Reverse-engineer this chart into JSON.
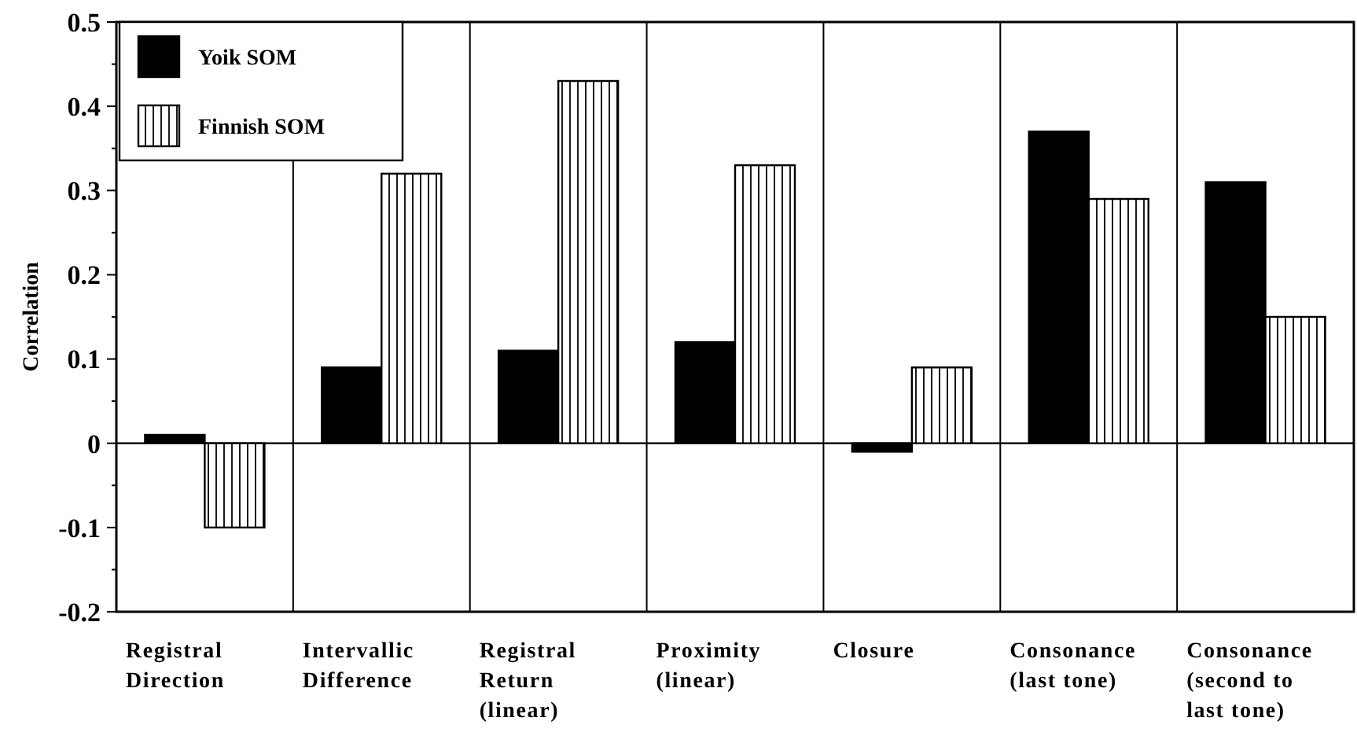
{
  "chart_data": {
    "type": "bar",
    "ylabel": "Correlation",
    "categories": [
      "Registral Direction",
      "Intervallic Difference",
      "Registral Return (linear)",
      "Proximity (linear)",
      "Closure",
      "Consonance (last tone)",
      "Consonance (second to last tone)"
    ],
    "series": [
      {
        "name": "Yoik SOM",
        "color": "#000000",
        "values": [
          0.01,
          0.09,
          0.11,
          0.12,
          -0.01,
          0.37,
          0.31
        ]
      },
      {
        "name": "Finnish SOM",
        "color": "#000000",
        "values": [
          -0.1,
          0.32,
          0.43,
          0.33,
          0.09,
          0.29,
          0.15
        ]
      }
    ],
    "ylim": [
      -0.2,
      0.5
    ],
    "yticks": [
      -0.2,
      {
        "value": -0.15,
        "label": null
      },
      -0.1,
      {
        "value": -0.05,
        "label": null
      },
      0,
      {
        "value": 0.05,
        "label": null
      },
      0.1,
      {
        "value": 0.15,
        "label": null
      },
      0.2,
      {
        "value": 0.25,
        "label": null
      },
      0.3,
      {
        "value": 0.35,
        "label": null
      },
      0.4,
      {
        "value": 0.45,
        "label": null
      },
      0.5
    ],
    "ref_lines": [
      {
        "axis": "y",
        "value": 0
      }
    ],
    "grid": "x",
    "legend": "top left"
  }
}
